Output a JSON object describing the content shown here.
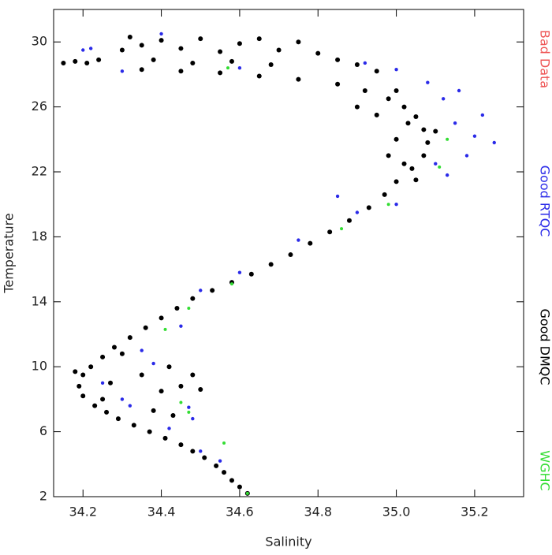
{
  "chart_data": {
    "type": "scatter",
    "x_label": "Salinity",
    "y_label": "Temperature",
    "xlim": [
      34.125,
      35.325
    ],
    "ylim": [
      2,
      32
    ],
    "xticks": [
      34.2,
      34.4,
      34.6,
      34.8,
      {
        "value": 35.0,
        "label": "35.0"
      },
      35.2
    ],
    "yticks": [
      2,
      6,
      10,
      14,
      18,
      22,
      26,
      30
    ],
    "series": [
      {
        "name": "Bad Data",
        "color": "#ee5555",
        "x": [],
        "y": []
      },
      {
        "name": "Good RTQC",
        "color": "#2a2ae8",
        "x": [
          35.15,
          35.2,
          35.22,
          35.18,
          35.25,
          35.12,
          35.1,
          35.16,
          35.08,
          35.0,
          34.92,
          34.2,
          34.22,
          34.3,
          34.4,
          34.6,
          34.55,
          34.5,
          34.47,
          34.48,
          34.42,
          34.3,
          34.25,
          34.35,
          34.45,
          34.6,
          34.75,
          34.9,
          34.85,
          35.0,
          34.5,
          34.38,
          34.32,
          35.13
        ],
        "y": [
          25.0,
          24.2,
          25.5,
          23.0,
          23.8,
          26.5,
          22.5,
          27.0,
          27.5,
          28.3,
          28.7,
          29.5,
          29.6,
          28.2,
          30.5,
          28.4,
          4.2,
          4.8,
          7.5,
          6.8,
          6.2,
          8.0,
          9.0,
          11.0,
          12.5,
          15.8,
          17.8,
          19.5,
          20.5,
          20.0,
          14.7,
          10.2,
          7.6,
          21.8
        ]
      },
      {
        "name": "Good DMQC",
        "color": "#000000",
        "x": [
          34.62,
          34.6,
          34.58,
          34.56,
          34.54,
          34.51,
          34.48,
          34.45,
          34.41,
          34.37,
          34.33,
          34.29,
          34.26,
          34.23,
          34.2,
          34.19,
          34.2,
          34.22,
          34.18,
          34.25,
          34.28,
          34.32,
          34.36,
          34.4,
          34.44,
          34.48,
          34.53,
          34.58,
          34.63,
          34.68,
          34.73,
          34.78,
          34.83,
          34.88,
          34.93,
          34.97,
          35.0,
          35.04,
          35.07,
          35.08,
          35.07,
          35.05,
          35.02,
          34.98,
          34.92,
          34.85,
          34.75,
          34.65,
          34.55,
          34.45,
          34.35,
          34.3,
          34.32,
          34.35,
          34.4,
          34.45,
          34.5,
          34.55,
          34.6,
          34.65,
          34.7,
          34.75,
          34.8,
          34.85,
          34.9,
          34.95,
          34.38,
          34.48,
          34.58,
          34.68,
          34.15,
          34.18,
          34.21,
          34.24,
          34.35,
          34.4,
          34.42,
          34.45,
          34.48,
          34.5,
          34.38,
          34.43,
          34.3,
          34.27,
          34.25,
          35.0,
          35.03,
          34.98,
          35.05,
          35.1,
          35.02,
          34.95,
          35.0,
          34.9
        ],
        "y": [
          2.2,
          2.6,
          3.0,
          3.5,
          3.9,
          4.4,
          4.8,
          5.2,
          5.6,
          6.0,
          6.4,
          6.8,
          7.2,
          7.6,
          8.2,
          8.8,
          9.5,
          10.0,
          9.7,
          10.6,
          11.2,
          11.8,
          12.4,
          13.0,
          13.6,
          14.2,
          14.7,
          15.2,
          15.7,
          16.3,
          16.9,
          17.6,
          18.3,
          19.0,
          19.8,
          20.6,
          21.4,
          22.2,
          23.0,
          23.8,
          24.6,
          25.4,
          26.0,
          26.5,
          27.0,
          27.4,
          27.7,
          27.9,
          28.1,
          28.2,
          28.3,
          29.5,
          30.3,
          29.8,
          30.1,
          29.6,
          30.2,
          29.4,
          29.9,
          30.2,
          29.5,
          30.0,
          29.3,
          28.9,
          28.6,
          28.2,
          28.9,
          28.7,
          28.8,
          28.6,
          28.7,
          28.8,
          28.7,
          28.9,
          9.5,
          8.5,
          10.0,
          8.8,
          9.5,
          8.6,
          7.3,
          7.0,
          10.8,
          9.0,
          8.0,
          24.0,
          25.0,
          23.0,
          21.5,
          24.5,
          22.5,
          25.5,
          27.0,
          26.0
        ]
      },
      {
        "name": "WGHC",
        "color": "#33dd33",
        "x": [
          34.62,
          34.47,
          34.45,
          34.58,
          34.86,
          34.98,
          35.11,
          35.13,
          34.47,
          34.41,
          34.57,
          34.56
        ],
        "y": [
          2.2,
          7.2,
          7.8,
          15.1,
          18.5,
          20.0,
          22.3,
          24.0,
          13.6,
          12.3,
          28.4,
          5.3
        ]
      }
    ]
  }
}
